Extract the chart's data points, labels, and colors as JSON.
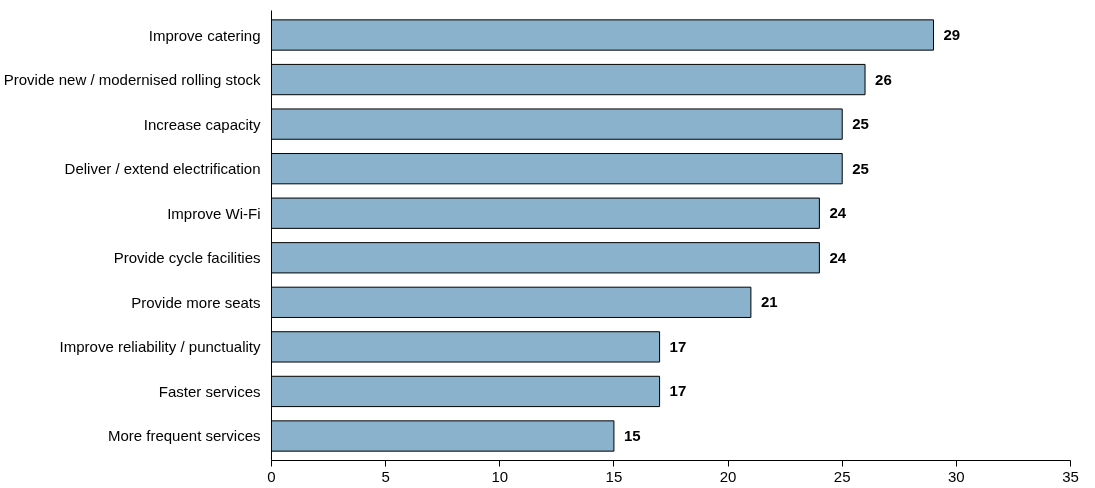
{
  "chart_data": {
    "type": "bar",
    "orientation": "horizontal",
    "categories": [
      "Improve catering",
      "Provide new / modernised rolling stock",
      "Increase capacity",
      "Deliver / extend electrification",
      "Improve Wi-Fi",
      "Provide cycle facilities",
      "Provide more seats",
      "Improve reliability / punctuality",
      "Faster services",
      "More frequent services"
    ],
    "values": [
      29,
      26,
      25,
      25,
      24,
      24,
      21,
      17,
      17,
      15
    ],
    "color": "#8ab2cc",
    "xlim": [
      0,
      35
    ],
    "xticks": [
      0,
      5,
      10,
      15,
      20,
      25,
      30,
      35
    ],
    "data_labels": true,
    "grid": false
  }
}
